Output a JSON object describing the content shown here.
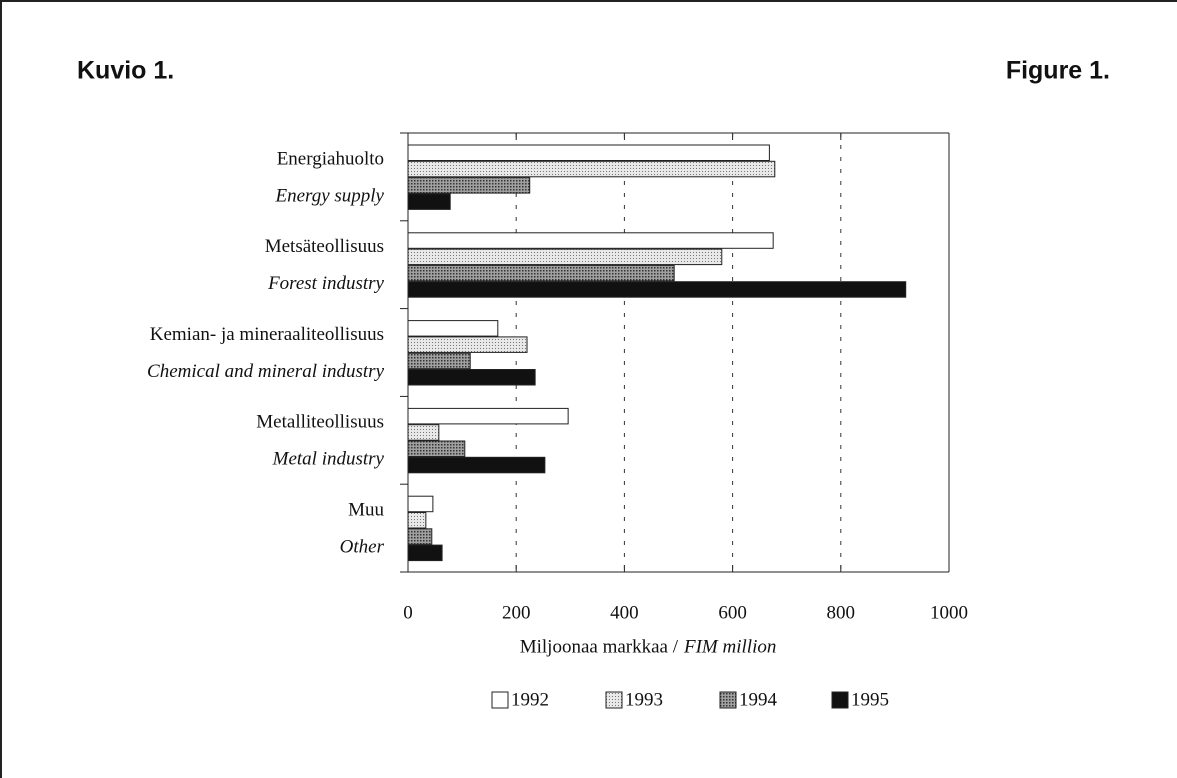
{
  "chart_data": {
    "type": "hbar",
    "title": "Kuvio 1.",
    "title_en": "Figure 1.",
    "categories": [
      "Energiahuolto",
      "Metsäteollisuus",
      "Kemian- ja mineraaliteollisuus",
      "Metalliteollisuus",
      "Muu"
    ],
    "categories_en": [
      "Energy supply",
      "Forest industry",
      "Chemical and mineral industry",
      "Metal industry",
      "Other"
    ],
    "series": [
      {
        "name": "1992",
        "color": "#ffffff",
        "values": [
          668,
          675,
          166,
          296,
          46
        ]
      },
      {
        "name": "1993",
        "color": "#d4d4d4",
        "values": [
          678,
          580,
          220,
          57,
          33
        ]
      },
      {
        "name": "1994",
        "color": "#8a8a8a",
        "values": [
          225,
          492,
          115,
          105,
          44
        ]
      },
      {
        "name": "1995",
        "color": "#111111",
        "values": [
          78,
          920,
          235,
          253,
          63
        ]
      }
    ],
    "xlim": [
      0,
      1000
    ],
    "xticks": [
      0,
      200,
      400,
      600,
      800,
      1000
    ],
    "xlabel": "Miljoonaa markkaa /",
    "xlabel_en": "FIM million",
    "grid": true
  }
}
